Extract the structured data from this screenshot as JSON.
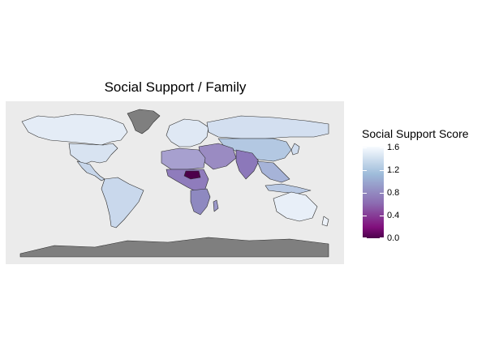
{
  "map": {
    "title": "Social Support / Family",
    "legend": {
      "title": "Social Support Score",
      "ticks": [
        "1.6",
        "1.2",
        "0.8",
        "0.4",
        "0.0"
      ],
      "range": [
        0.0,
        1.6
      ],
      "colors": [
        "#f7fbff",
        "#9ebcda",
        "#8c6bb1",
        "#810f7c",
        "#4d004b"
      ]
    },
    "missing_color": "#808080",
    "background_color": "#ebebeb"
  }
}
